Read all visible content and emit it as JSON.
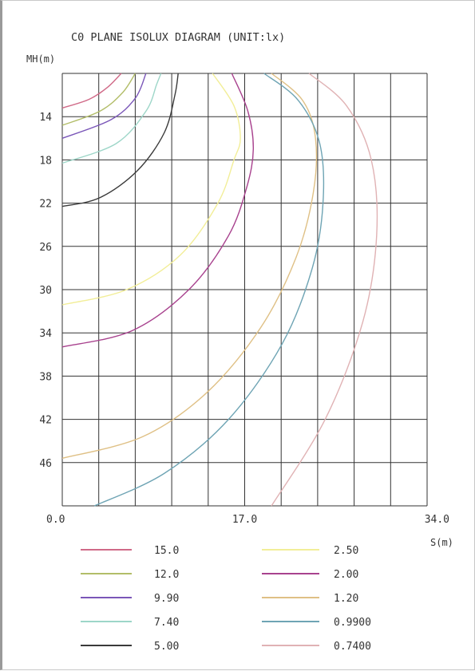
{
  "chart_data": {
    "type": "line",
    "title": "C0 PLANE ISOLUX DIAGRAM (UNIT:lx)",
    "xlabel": "S(m)",
    "ylabel": "MH(m)",
    "x_ticks": [
      "0.0",
      "17.0",
      "34.0"
    ],
    "y_ticks": [
      "14",
      "18",
      "22",
      "26",
      "30",
      "34",
      "38",
      "42",
      "46"
    ],
    "xlim": [
      0,
      34
    ],
    "ylim": [
      10,
      50
    ],
    "grid": true,
    "legend_position": "bottom",
    "series": [
      {
        "name": "15.0",
        "color": "#d06a88",
        "x": [
          0,
          2.5,
          4.2,
          5.5
        ],
        "y": [
          13.2,
          12.4,
          11.3,
          10.0
        ]
      },
      {
        "name": "12.0",
        "color": "#b2bd68",
        "x": [
          0,
          3.5,
          5.6,
          6.8
        ],
        "y": [
          14.8,
          13.5,
          11.8,
          10.0
        ]
      },
      {
        "name": "9.90",
        "color": "#7a56b8",
        "x": [
          0,
          4.5,
          6.8,
          7.8
        ],
        "y": [
          16.0,
          14.3,
          12.3,
          10.0
        ]
      },
      {
        "name": "7.40",
        "color": "#9dd6c8",
        "x": [
          0,
          5.0,
          7.8,
          8.8,
          9.2
        ],
        "y": [
          18.3,
          16.5,
          13.5,
          11.0,
          10.0
        ]
      },
      {
        "name": "5.00",
        "color": "#3a3a3a",
        "x": [
          0,
          3.5,
          7.0,
          9.5,
          10.5,
          10.8
        ],
        "y": [
          22.3,
          21.5,
          19.0,
          15.5,
          12.0,
          10.0
        ]
      },
      {
        "name": "2.50",
        "color": "#f2ee98",
        "x": [
          0,
          6.0,
          11.0,
          14.5,
          16.0,
          16.6,
          16.0,
          14.0
        ],
        "y": [
          31.4,
          30.0,
          26.8,
          22.0,
          18.0,
          16.0,
          13.0,
          10.0
        ]
      },
      {
        "name": "2.00",
        "color": "#a8428e",
        "x": [
          0,
          6.5,
          11.8,
          15.5,
          17.2,
          17.8,
          17.3,
          15.8
        ],
        "y": [
          35.3,
          33.8,
          30.0,
          25.0,
          20.5,
          17.0,
          13.5,
          10.0
        ]
      },
      {
        "name": "1.20",
        "color": "#dfc085",
        "x": [
          0,
          7.5,
          13.5,
          18.5,
          21.8,
          23.4,
          23.6,
          22.4,
          19.5
        ],
        "y": [
          45.6,
          43.6,
          39.5,
          33.5,
          27.0,
          21.0,
          16.0,
          12.5,
          10.0
        ]
      },
      {
        "name": "0.9900",
        "color": "#6ea4b4",
        "x": [
          3.0,
          9.5,
          15.5,
          20.5,
          23.3,
          24.3,
          24.0,
          22.0,
          18.8
        ],
        "y": [
          50.0,
          47.0,
          42.0,
          35.0,
          28.0,
          22.0,
          16.5,
          12.5,
          10.0
        ]
      },
      {
        "name": "0.7400",
        "color": "#e0b2b4",
        "x": [
          19.5,
          24.5,
          28.0,
          29.3,
          28.8,
          26.5,
          23.0
        ],
        "y": [
          50.0,
          42.0,
          33.0,
          25.0,
          18.0,
          13.0,
          10.0
        ]
      }
    ]
  }
}
